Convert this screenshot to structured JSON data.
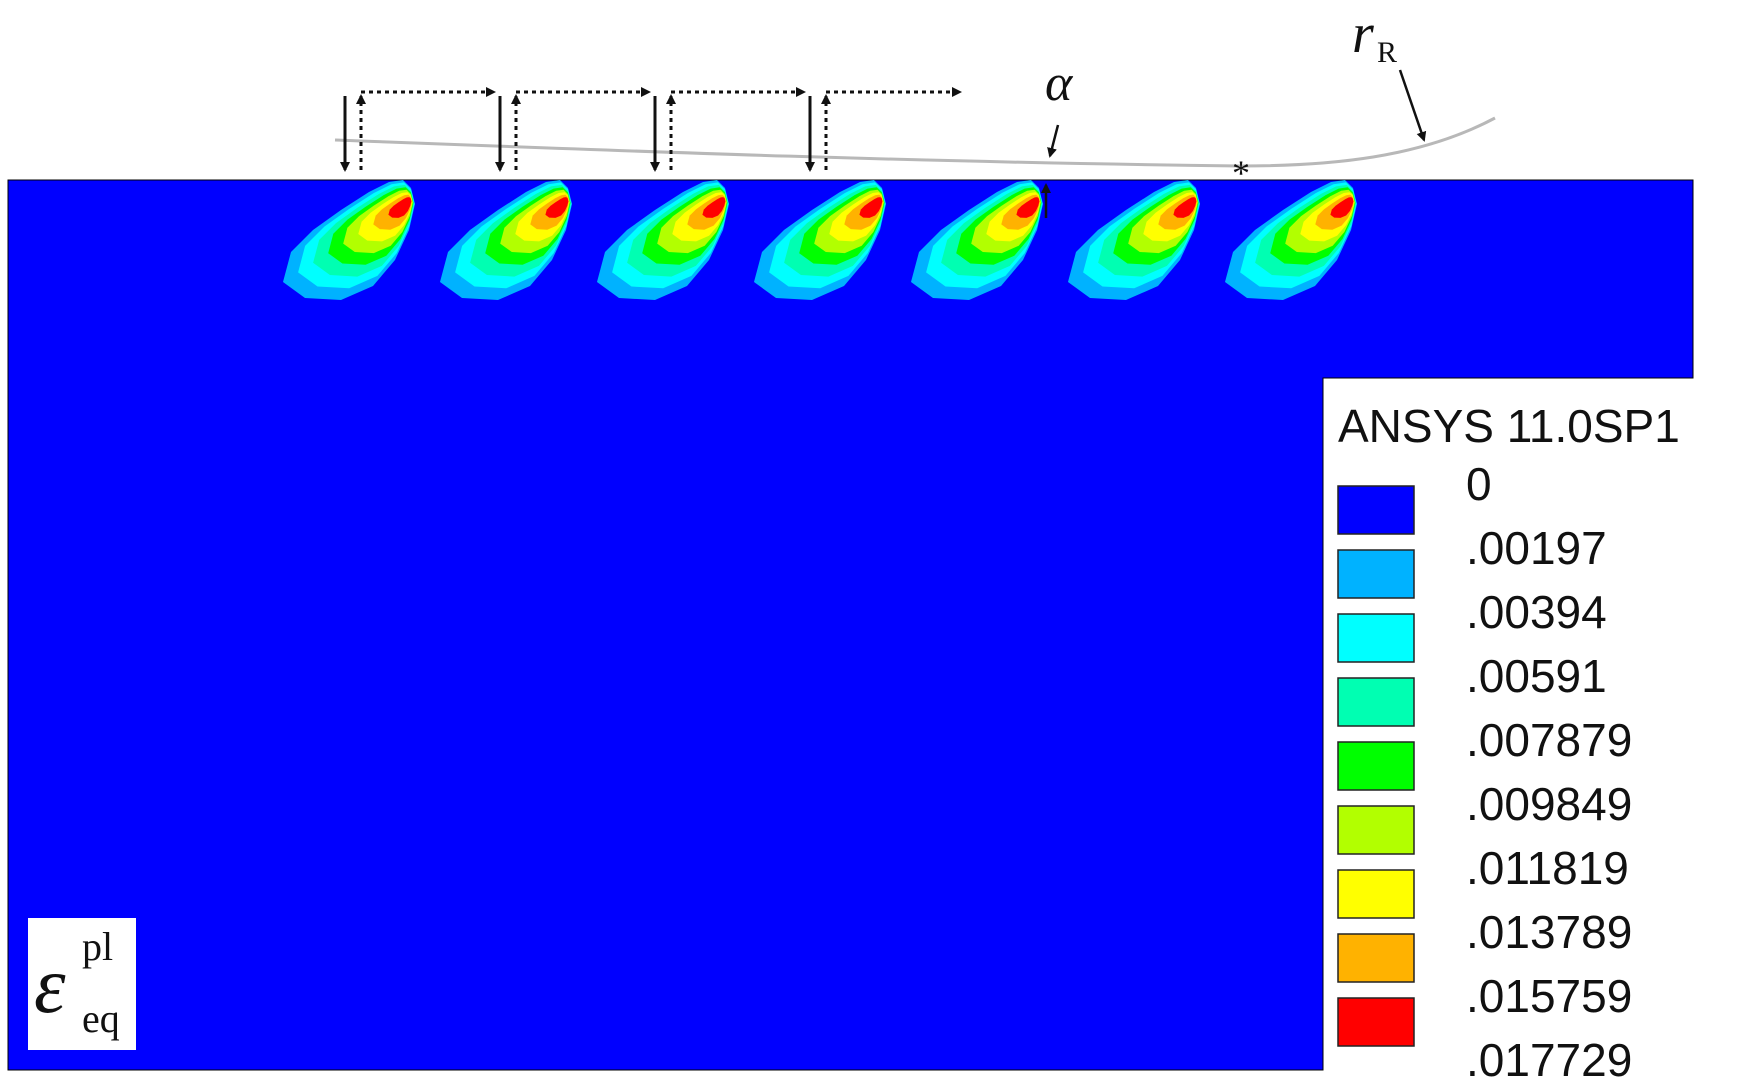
{
  "figure": {
    "field_symbol": "ε",
    "field_superscript": "pl",
    "field_subscript": "eq",
    "alpha_label": "α",
    "radius_symbol": "r",
    "radius_subscript": "R",
    "asterisk": "*",
    "background_color": "#0000ff"
  },
  "legend": {
    "title": "ANSYS 11.0SP1",
    "levels": [
      {
        "value": "0",
        "color": "#0000ff"
      },
      {
        "value": ".00197",
        "color": "#00b2ff"
      },
      {
        "value": ".00394",
        "color": "#00ffff"
      },
      {
        "value": ".00591",
        "color": "#00ffb2"
      },
      {
        "value": ".007879",
        "color": "#00ff00"
      },
      {
        "value": ".009849",
        "color": "#b2ff00"
      },
      {
        "value": ".011819",
        "color": "#ffff00"
      },
      {
        "value": ".013789",
        "color": "#ffb200"
      },
      {
        "value": ".015759",
        "color": "#ff0000"
      },
      {
        "value": ".017729",
        "color": ""
      }
    ]
  },
  "contact_zones": {
    "count": 7,
    "layer_colors": [
      "#00b2ff",
      "#00ffff",
      "#00ffb2",
      "#00ff00",
      "#b2ff00",
      "#ffff00",
      "#ffb200",
      "#ff0000"
    ]
  }
}
